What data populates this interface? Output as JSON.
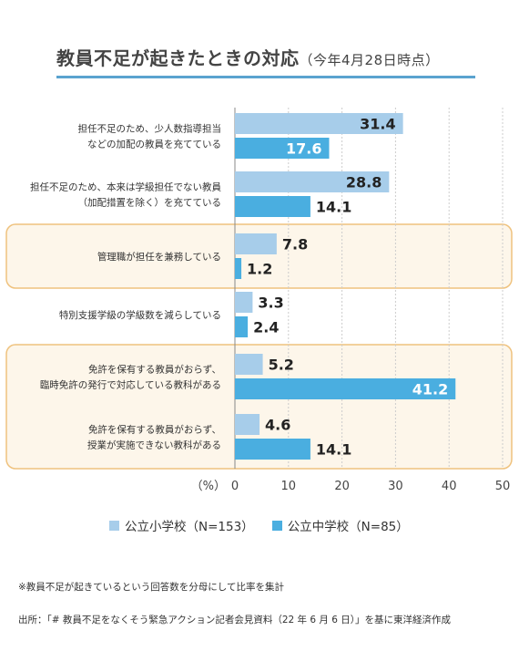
{
  "title": "教員不足が起きたときの対応",
  "subtitle": "（今年4月28日時点）",
  "colors": {
    "primary": "#a7cdea",
    "secondary": "#4aaee0",
    "highlight_border": "#efc27e",
    "highlight_fill": "#fdf6ea",
    "title_rule": "#5aa3cf",
    "grid": "#cccccc"
  },
  "chart_data": {
    "type": "bar",
    "orientation": "horizontal",
    "title": "教員不足が起きたときの対応（今年4月28日時点）",
    "categories": [
      [
        "担任不足のため、少人数指導担当",
        "などの加配の教員を充てている"
      ],
      [
        "担任不足のため、本来は学級担任でない教員",
        "（加配措置を除く）を充てている"
      ],
      [
        "管理職が担任を兼務している"
      ],
      [
        "特別支援学級の学級数を減らしている"
      ],
      [
        "免許を保有する教員がおらず、",
        "臨時免許の発行で対応している教科がある"
      ],
      [
        "免許を保有する教員がおらず、",
        "授業が実施できない教科がある"
      ]
    ],
    "series": [
      {
        "name": "公立小学校（N=153）",
        "values": [
          31.4,
          28.8,
          7.8,
          3.3,
          5.2,
          4.6
        ]
      },
      {
        "name": "公立中学校（N=85）",
        "values": [
          17.6,
          14.1,
          1.2,
          2.4,
          41.2,
          14.1
        ]
      }
    ],
    "value_labels": [
      [
        "31.4",
        "28.8",
        "7.8",
        "3.3",
        "5.2",
        "4.6"
      ],
      [
        "17.6",
        "14.1",
        "1.2",
        "2.4",
        "41.2",
        "14.1"
      ]
    ],
    "xlim": [
      0,
      50
    ],
    "xticks": [
      "0",
      "10",
      "20",
      "30",
      "40",
      "50"
    ],
    "xunit": "（%）",
    "grid": true,
    "highlighted_categories": [
      2,
      4,
      5
    ],
    "legend_position": "bottom"
  },
  "notes": {
    "footnote": "※教員不足が起きているという回答数を分母にして比率を集計",
    "source": "出所：「# 教員不足をなくそう緊急アクション記者会見資料（22 年 6 月 6 日）」を基に東洋経済作成"
  }
}
